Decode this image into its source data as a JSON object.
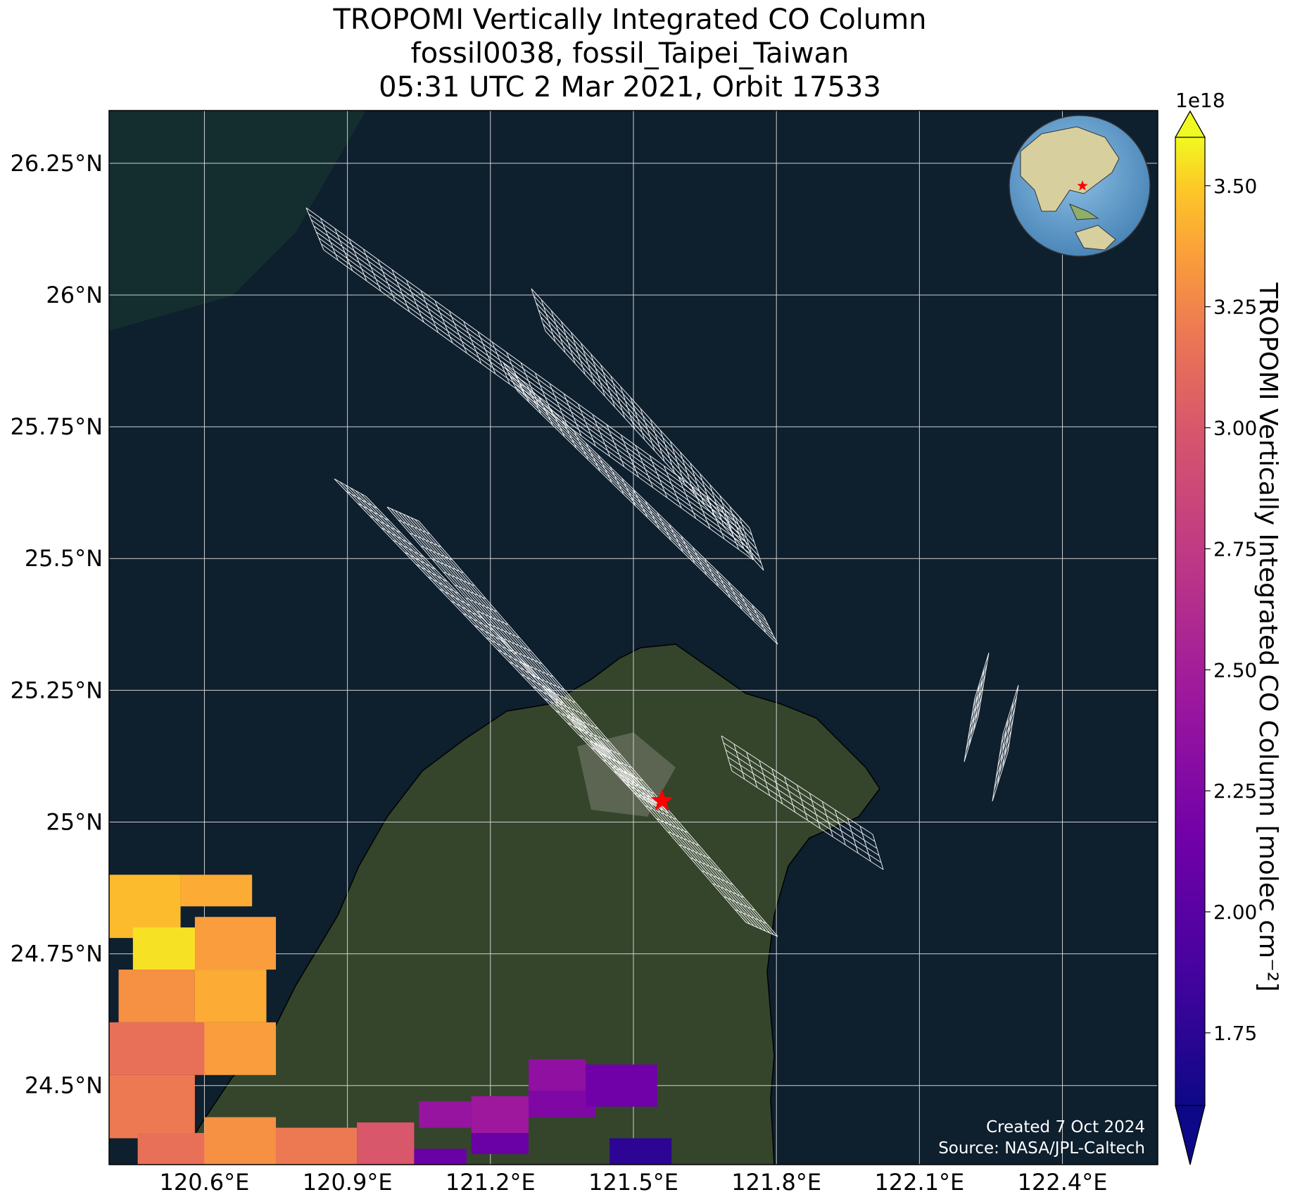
{
  "title": {
    "line1": "TROPOMI Vertically Integrated CO Column",
    "line2": "fossil0038, fossil_Taipei_Taiwan",
    "line3": "05:31 UTC 2 Mar 2021, Orbit 17533"
  },
  "map": {
    "lon_range": [
      120.4,
      122.6
    ],
    "lat_range": [
      24.35,
      26.35
    ],
    "lon_ticks": [
      "120.6°E",
      "120.9°E",
      "121.2°E",
      "121.5°E",
      "121.8°E",
      "122.1°E",
      "122.4°E"
    ],
    "lat_ticks": [
      "26.25°N",
      "26°N",
      "25.75°N",
      "25.5°N",
      "25.25°N",
      "25°N",
      "24.75°N",
      "24.5°N"
    ],
    "target_marker": {
      "lon": 121.56,
      "lat": 25.04,
      "color": "#ff0000",
      "icon": "star"
    },
    "inset": "globe-locator",
    "credit_line1": "Created 7 Oct 2024",
    "credit_line2": "Source: NASA/JPL-Caltech",
    "ocean_color": "#0e1f2e",
    "land_color": "#34452c",
    "grid_color": "#d0d0d0",
    "footprint_color": "#ffffff"
  },
  "colorbar": {
    "label": "TROPOMI Vertically Integrated CO Column [molec cm⁻²]",
    "exponent": "1e18",
    "range": [
      1.6,
      3.6
    ],
    "ticks": [
      "3.50",
      "3.25",
      "3.00",
      "2.75",
      "2.50",
      "2.25",
      "2.00",
      "1.75"
    ],
    "tick_values": [
      3.5,
      3.25,
      3.0,
      2.75,
      2.5,
      2.25,
      2.0,
      1.75
    ],
    "colormap": "plasma",
    "extend": "both"
  }
}
